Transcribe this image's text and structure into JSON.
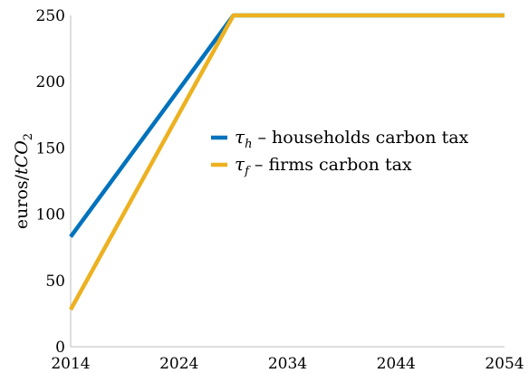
{
  "chart_data": {
    "type": "line",
    "xlabel": "",
    "ylabel": "euros/tCO2",
    "ylabel_parts": {
      "prefix": "euros/",
      "var": "tCO",
      "sub": "2"
    },
    "xlim": [
      2014,
      2054
    ],
    "ylim": [
      0,
      250
    ],
    "xticks": [
      2014,
      2024,
      2034,
      2044,
      2054
    ],
    "yticks": [
      0,
      50,
      100,
      150,
      200,
      250
    ],
    "grid": false,
    "legend_position": "center-right",
    "series": [
      {
        "name": "τ_h – households carbon tax",
        "symbol": "τ",
        "sub": "h",
        "label": " – households carbon tax",
        "color": "#0072BD",
        "x": [
          2014,
          2029,
          2054
        ],
        "y": [
          83,
          250,
          250
        ]
      },
      {
        "name": "τ_f – firms carbon tax",
        "symbol": "τ",
        "sub": "f",
        "label": " – firms carbon tax",
        "color": "#EDB120",
        "x": [
          2014,
          2029,
          2054
        ],
        "y": [
          28,
          250,
          250
        ]
      }
    ]
  }
}
